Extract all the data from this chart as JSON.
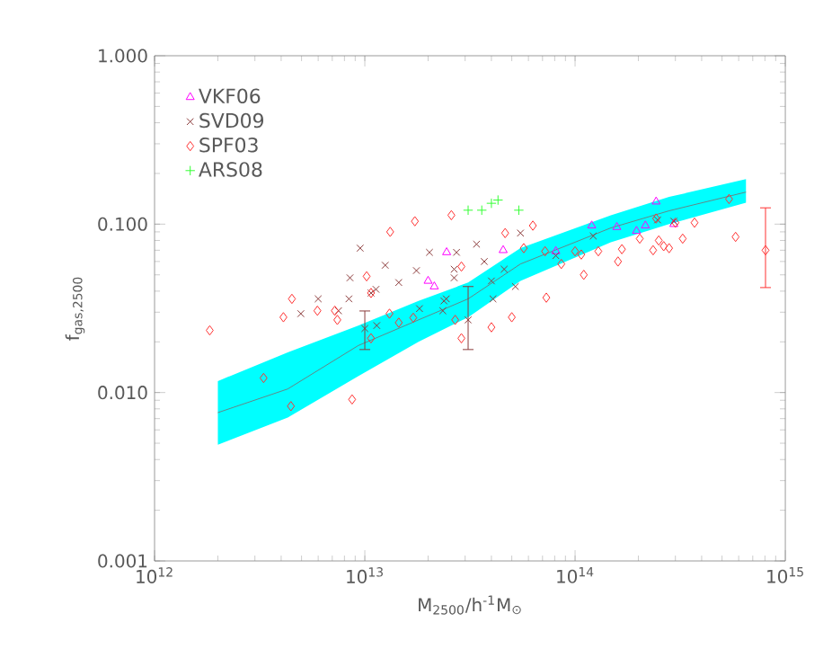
{
  "chart_data": {
    "type": "scatter",
    "xlabel": "M$_{2500}$/h$^{-1}$M$_{⊙}$",
    "ylabel": "f$_{gas,2500}$",
    "log": "xy",
    "xlim": [
      1000000000000.0,
      1000000000000000.0
    ],
    "ylim": [
      0.001,
      1
    ],
    "xticks": [
      {
        "value": 1000000000000.0,
        "label": "10$^{12}$"
      },
      {
        "value": 10000000000000.0,
        "label": "10$^{13}$"
      },
      {
        "value": 100000000000000.0,
        "label": "10$^{14}$"
      },
      {
        "value": 1000000000000000.0,
        "label": "10$^{15}$"
      }
    ],
    "yticks": [
      {
        "value": 0.001,
        "label": "0.001"
      },
      {
        "value": 0.01,
        "label": "0.010"
      },
      {
        "value": 0.1,
        "label": "0.100"
      },
      {
        "value": 1,
        "label": "1.000"
      }
    ],
    "legend": "top left",
    "grid": false,
    "series": [
      {
        "type": "line",
        "color": "#7a6a6a",
        "marker": "none",
        "x": [
          2000000000000.0,
          4300000000000.0,
          9300000000000.0,
          18000000000000.0,
          31000000000000.0,
          55000000000000.0,
          148000000000000.0,
          280000000000000.0,
          650000000000000.0
        ],
        "values": [
          0.0076,
          0.0105,
          0.019,
          0.027,
          0.036,
          0.058,
          0.095,
          0.12,
          0.155
        ],
        "lower": [
          0.0049,
          0.0071,
          0.0125,
          0.02,
          0.028,
          0.046,
          0.078,
          0.1,
          0.134
        ],
        "upper": [
          0.0117,
          0.0173,
          0.025,
          0.035,
          0.045,
          0.072,
          0.113,
          0.145,
          0.185
        ]
      },
      {
        "name": "VKF06",
        "type": "scatter",
        "color": "#ff00ff",
        "marker": "triangle",
        "x": [
          24500000000000.0,
          20000000000000.0,
          45500000000000.0,
          21400000000000.0,
          81000000000000.0,
          120000000000000.0,
          158000000000000.0,
          196000000000000.0,
          216000000000000.0,
          243000000000000.0,
          295000000000000.0
        ],
        "values": [
          0.068,
          0.046,
          0.07,
          0.0426,
          0.069,
          0.098,
          0.096,
          0.091,
          0.098,
          0.136,
          0.1
        ]
      },
      {
        "name": "SVD09",
        "type": "scatter",
        "color": "#8b3a3a",
        "marker": "cross",
        "x": [
          4960000000000.0,
          6000000000000.0,
          7500000000000.0,
          8400000000000.0,
          8500000000000.0,
          9500000000000.0,
          10700000000000.0,
          11300000000000.0,
          12500000000000.0,
          14500000000000.0,
          17600000000000.0,
          20300000000000.0,
          27300000000000.0,
          24400000000000.0,
          26600000000000.0,
          10000000000000.0,
          11400000000000.0,
          18200000000000.0,
          26600000000000.0,
          23500000000000.0,
          23800000000000.0,
          31000000000000.0,
          34000000000000.0,
          37000000000000.0,
          40000000000000.0,
          40700000000000.0,
          46000000000000.0,
          55000000000000.0,
          52000000000000.0,
          81000000000000.0,
          122000000000000.0,
          247000000000000.0,
          295000000000000.0
        ],
        "values": [
          0.0294,
          0.036,
          0.0306,
          0.036,
          0.048,
          0.072,
          0.039,
          0.041,
          0.057,
          0.045,
          0.053,
          0.068,
          0.068,
          0.036,
          0.048,
          0.024,
          0.025,
          0.0315,
          0.054,
          0.0306,
          0.035,
          0.027,
          0.076,
          0.06,
          0.046,
          0.036,
          0.054,
          0.0885,
          0.0426,
          0.065,
          0.085,
          0.106,
          0.104
        ],
        "errors": [
          null,
          null,
          null,
          null,
          null,
          null,
          null,
          null,
          null,
          null,
          null,
          null,
          null,
          null,
          null,
          [
            0.018,
            0.0305
          ],
          null,
          null,
          null,
          null,
          null,
          [
            0.018,
            0.0426
          ],
          null,
          null,
          null,
          null,
          null,
          null,
          null,
          null,
          null,
          null,
          null
        ]
      },
      {
        "name": "SPF03",
        "type": "scatter",
        "color": "#ff3030",
        "marker": "diamond",
        "x": [
          1830000000000.0,
          4500000000000.0,
          4100000000000.0,
          5950000000000.0,
          7200000000000.0,
          7400000000000.0,
          10200000000000.0,
          10700000000000.0,
          13200000000000.0,
          17300000000000.0,
          25800000000000.0,
          28800000000000.0,
          28800000000000.0,
          3300000000000.0,
          4450000000000.0,
          8700000000000.0,
          10700000000000.0,
          13100000000000.0,
          14500000000000.0,
          17000000000000.0,
          26900000000000.0,
          40000000000000.0,
          50000000000000.0,
          46500000000000.0,
          63000000000000.0,
          57000000000000.0,
          73000000000000.0,
          72000000000000.0,
          86000000000000.0,
          100000000000000.0,
          107000000000000.0,
          110000000000000.0,
          129000000000000.0,
          160000000000000.0,
          167000000000000.0,
          203000000000000.0,
          235000000000000.0,
          250000000000000.0,
          264000000000000.0,
          280000000000000.0,
          243000000000000.0,
          300000000000000.0,
          325000000000000.0,
          370000000000000.0,
          540000000000000.0,
          580000000000000.0,
          805000000000000.0
        ],
        "values": [
          0.0234,
          0.036,
          0.028,
          0.0306,
          0.0306,
          0.027,
          0.049,
          0.039,
          0.09,
          0.104,
          0.113,
          0.056,
          0.021,
          0.0122,
          0.0083,
          0.0091,
          0.021,
          0.0294,
          0.026,
          0.0278,
          0.027,
          0.0244,
          0.028,
          0.0885,
          0.098,
          0.072,
          0.0366,
          0.069,
          0.058,
          0.069,
          0.066,
          0.05,
          0.069,
          0.06,
          0.071,
          0.082,
          0.07,
          0.08,
          0.074,
          0.072,
          0.108,
          0.102,
          0.082,
          0.102,
          0.141,
          0.084,
          0.07
        ],
        "errors": [
          null,
          null,
          null,
          null,
          null,
          null,
          null,
          null,
          null,
          null,
          null,
          null,
          null,
          null,
          null,
          null,
          null,
          null,
          null,
          null,
          null,
          null,
          null,
          null,
          null,
          null,
          null,
          null,
          null,
          null,
          null,
          null,
          null,
          null,
          null,
          null,
          null,
          null,
          null,
          null,
          null,
          null,
          null,
          null,
          null,
          null,
          [
            0.042,
            0.125
          ]
        ]
      },
      {
        "name": "ARS08",
        "type": "scatter",
        "color": "#33ff33",
        "marker": "plus",
        "x": [
          31000000000000.0,
          36000000000000.0,
          40000000000000.0,
          43000000000000.0,
          54000000000000.0
        ],
        "values": [
          0.121,
          0.121,
          0.133,
          0.139,
          0.121
        ]
      }
    ]
  }
}
